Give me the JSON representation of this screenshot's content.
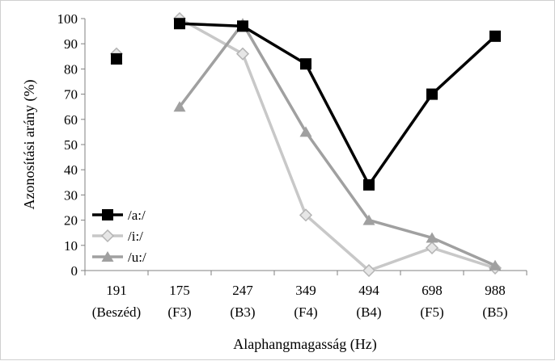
{
  "chart_data": {
    "type": "line",
    "title": "",
    "xlabel": "Alaphangmagasság (Hz)",
    "ylabel": "Azonosítási arány (%)",
    "ylim": [
      0,
      100
    ],
    "yticks": [
      0,
      10,
      20,
      30,
      40,
      50,
      60,
      70,
      80,
      90,
      100
    ],
    "grid": false,
    "legend_position": "bottom-left",
    "categories": [
      {
        "line1": "191",
        "line2": "(Beszéd)"
      },
      {
        "line1": "175",
        "line2": "(F3)"
      },
      {
        "line1": "247",
        "line2": "(B3)"
      },
      {
        "line1": "349",
        "line2": "(F4)"
      },
      {
        "line1": "494",
        "line2": "(B4)"
      },
      {
        "line1": "698",
        "line2": "(F5)"
      },
      {
        "line1": "988",
        "line2": "(B5)"
      }
    ],
    "series": [
      {
        "name": "/a:/",
        "color": "#000000",
        "marker": "square",
        "values": [
          84,
          98,
          97,
          82,
          34,
          70,
          93
        ]
      },
      {
        "name": "/i:/",
        "color": "#c8c8c8",
        "marker": "diamond",
        "values": [
          86,
          100,
          86,
          22,
          0,
          9,
          1
        ]
      },
      {
        "name": "/u:/",
        "color": "#a0a0a0",
        "marker": "triangle",
        "values": [
          84,
          65,
          98,
          55,
          20,
          13,
          2
        ]
      }
    ]
  }
}
